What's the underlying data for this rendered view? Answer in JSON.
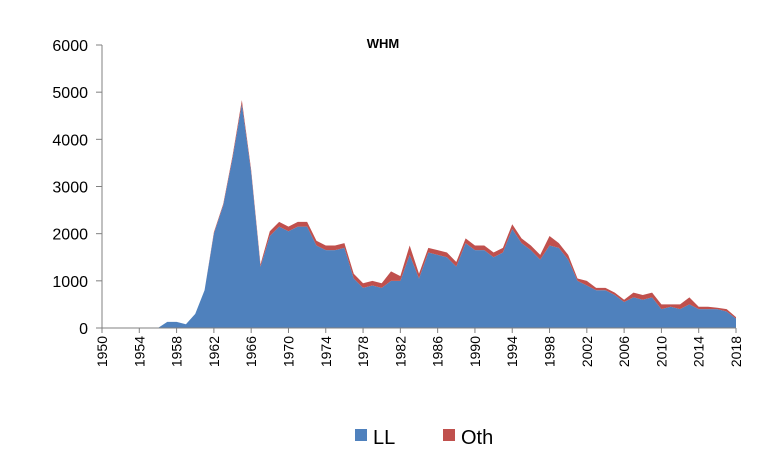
{
  "chart_data": {
    "type": "area",
    "stacked": true,
    "title": "WHM",
    "xlabel": "",
    "ylabel": "",
    "ylim": [
      0,
      6000
    ],
    "yticks": [
      0,
      1000,
      2000,
      3000,
      4000,
      5000,
      6000
    ],
    "xlim": [
      1950,
      2018
    ],
    "xticks": [
      1950,
      1954,
      1958,
      1962,
      1966,
      1970,
      1974,
      1978,
      1982,
      1986,
      1990,
      1994,
      1998,
      2002,
      2006,
      2010,
      2014,
      2018
    ],
    "grid": false,
    "legend_position": "bottom",
    "x": [
      1950,
      1951,
      1952,
      1953,
      1954,
      1955,
      1956,
      1957,
      1958,
      1959,
      1960,
      1961,
      1962,
      1963,
      1964,
      1965,
      1966,
      1967,
      1968,
      1969,
      1970,
      1971,
      1972,
      1973,
      1974,
      1975,
      1976,
      1977,
      1978,
      1979,
      1980,
      1981,
      1982,
      1983,
      1984,
      1985,
      1986,
      1987,
      1988,
      1989,
      1990,
      1991,
      1992,
      1993,
      1994,
      1995,
      1996,
      1997,
      1998,
      1999,
      2000,
      2001,
      2002,
      2003,
      2004,
      2005,
      2006,
      2007,
      2008,
      2009,
      2010,
      2011,
      2012,
      2013,
      2014,
      2015,
      2016,
      2017,
      2018
    ],
    "series": [
      {
        "name": "LL",
        "color": "#4F81BD",
        "values": [
          0,
          0,
          0,
          0,
          0,
          0,
          0,
          130,
          130,
          80,
          300,
          800,
          2000,
          2600,
          3600,
          4750,
          3300,
          1300,
          1950,
          2150,
          2050,
          2150,
          2150,
          1750,
          1650,
          1650,
          1700,
          1050,
          850,
          900,
          850,
          1000,
          1000,
          1550,
          1050,
          1600,
          1550,
          1500,
          1300,
          1800,
          1650,
          1650,
          1500,
          1600,
          2100,
          1800,
          1650,
          1450,
          1750,
          1700,
          1450,
          1000,
          900,
          800,
          800,
          700,
          550,
          650,
          600,
          650,
          400,
          450,
          400,
          500,
          400,
          400,
          400,
          350,
          200
        ]
      },
      {
        "name": "Oth",
        "color": "#C0504D",
        "values": [
          0,
          0,
          0,
          0,
          0,
          0,
          0,
          0,
          0,
          0,
          0,
          0,
          30,
          30,
          50,
          80,
          50,
          50,
          100,
          100,
          100,
          100,
          100,
          100,
          100,
          100,
          100,
          100,
          100,
          100,
          100,
          200,
          100,
          200,
          100,
          100,
          100,
          100,
          100,
          100,
          100,
          100,
          100,
          100,
          100,
          100,
          100,
          100,
          200,
          100,
          100,
          50,
          100,
          50,
          50,
          50,
          50,
          100,
          100,
          100,
          100,
          50,
          100,
          150,
          50,
          50,
          30,
          50,
          30
        ]
      }
    ]
  }
}
